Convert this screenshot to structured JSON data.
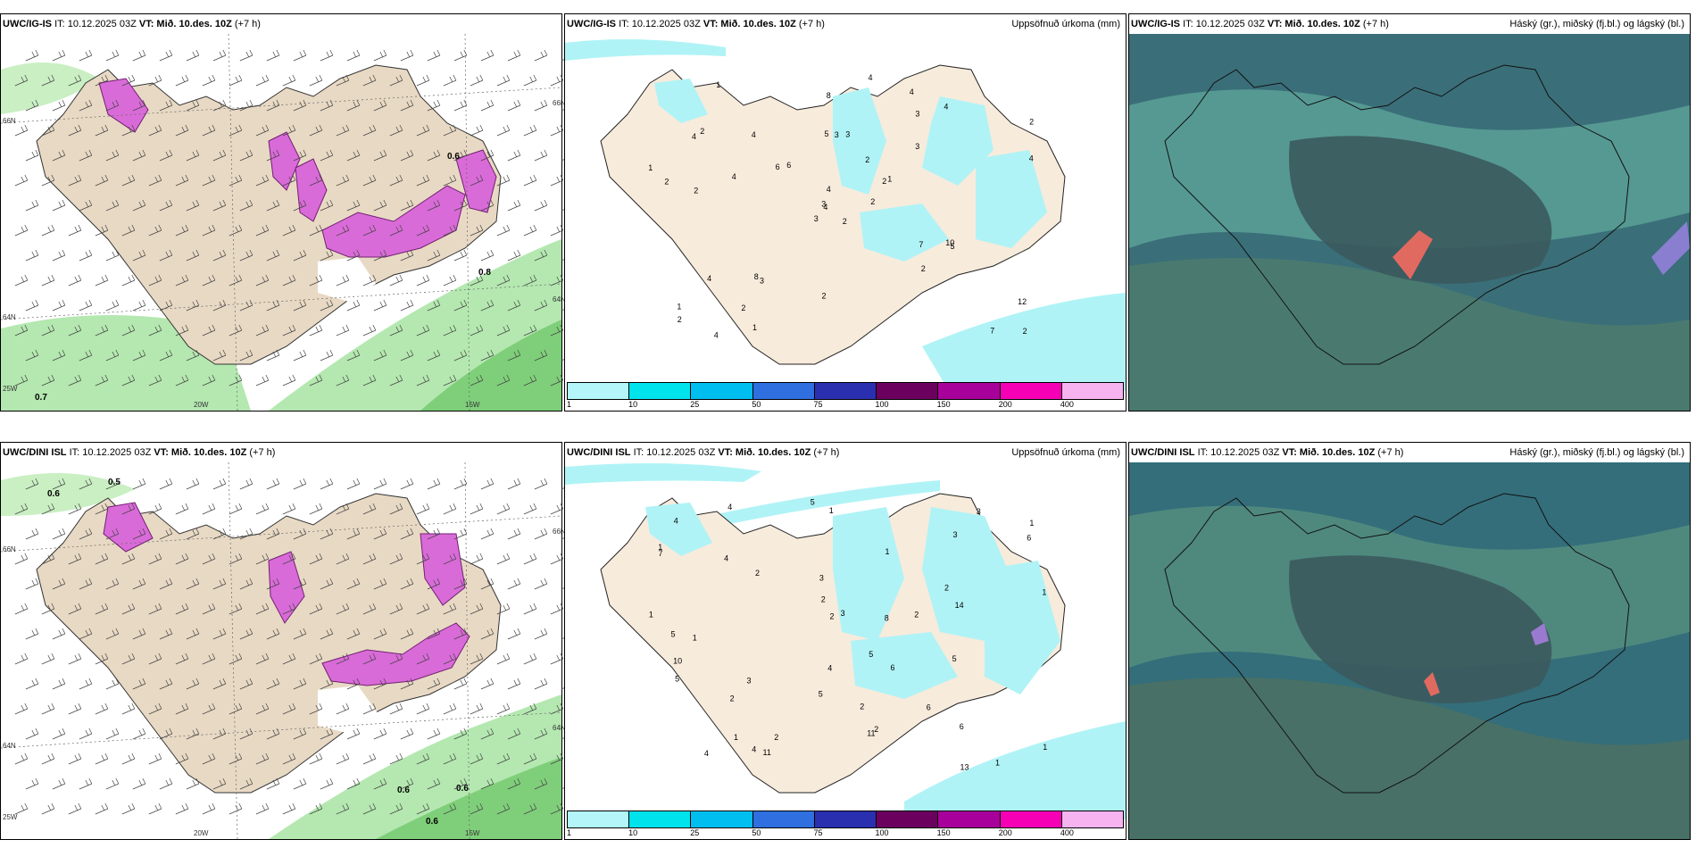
{
  "rows": [
    {
      "model_label": "UWC/IG-IS",
      "issue": "IT: 10.12.2025 03Z",
      "valid_label": "VT:",
      "valid_time": "Mið. 10.des. 10Z",
      "lead": "(+7 h)",
      "precip_values": [
        "2",
        "4",
        "4",
        "1",
        "2",
        "3",
        "4",
        "3",
        "3",
        "2",
        "1",
        "2",
        "2",
        "2",
        "3",
        "3",
        "4",
        "5",
        "2",
        "4",
        "6",
        "2",
        "2",
        "3",
        "1",
        "5",
        "2",
        "8",
        "2",
        "7",
        "4",
        "3",
        "2",
        "4",
        "4",
        "4",
        "8",
        "7",
        "12",
        "10",
        "4",
        "6",
        "4",
        "2",
        "1",
        "1"
      ],
      "wind_values": [
        "0.8",
        "0.7",
        "0.6"
      ],
      "lon_labels": [
        "20W",
        "15W",
        "25W"
      ],
      "lat_labels": [
        "66N",
        "64N",
        "66N",
        "64N"
      ]
    },
    {
      "model_label": "UWC/DINI ISL",
      "issue": "IT: 10.12.2025 03Z",
      "valid_label": "VT:",
      "valid_time": "Mið. 10.des. 10Z",
      "lead": "(+7 h)",
      "precip_values": [
        "1",
        "1",
        "2",
        "1",
        "1",
        "1",
        "1",
        "1",
        "3",
        "3",
        "3",
        "5",
        "5",
        "7",
        "4",
        "2",
        "2",
        "5",
        "5",
        "5",
        "6",
        "6",
        "6",
        "2",
        "1",
        "2",
        "6",
        "4",
        "11",
        "11",
        "10",
        "13",
        "8",
        "4",
        "4",
        "5",
        "14",
        "4",
        "2",
        "2",
        "2",
        "2",
        "1",
        "1",
        "4",
        "3",
        "3"
      ],
      "wind_values": [
        "0.6",
        "0.6",
        "0.6",
        "0.6",
        "0.5"
      ],
      "lon_labels": [
        "20W",
        "15W",
        "25W"
      ],
      "lat_labels": [
        "66N",
        "64N",
        "66N",
        "64N"
      ]
    }
  ],
  "precip_title": "Uppsöfnuð úrkoma (mm)",
  "cloud_title": "Háský (gr.), miðský (fj.bl.) og lágský (bl.)",
  "colorbar": {
    "ticks": [
      "1",
      "10",
      "25",
      "50",
      "75",
      "100",
      "150",
      "200",
      "400"
    ],
    "colors": [
      "#b3f5f9",
      "#00e3ec",
      "#00bff0",
      "#2f6fe0",
      "#2a2fb0",
      "#6b005e",
      "#a8009a",
      "#f500b5",
      "#f7b3f0"
    ]
  },
  "colors": {
    "land": "#f3e3d1",
    "snow_land": "#ffffff",
    "precip_light": "#b0f3f6",
    "sea_green": "#b4e8b0",
    "purple": "#d96bd8",
    "cloud_bg": "#3a6f79",
    "cloud_light": "#5ea49a",
    "cloud_dark": "#3b5a5d"
  }
}
